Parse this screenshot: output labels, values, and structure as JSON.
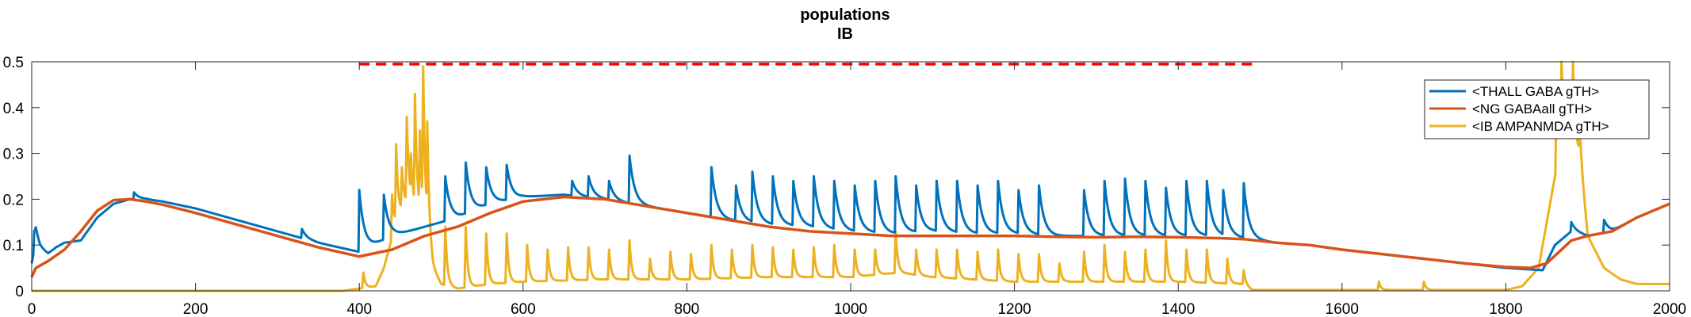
{
  "chart_data": {
    "type": "line",
    "title": "populations",
    "subtitle": "IB",
    "xlabel": "",
    "ylabel": "",
    "xlim": [
      0,
      2000
    ],
    "ylim": [
      0,
      0.5
    ],
    "x_ticks": [
      0,
      200,
      400,
      600,
      800,
      1000,
      1200,
      1400,
      1600,
      1800,
      2000
    ],
    "y_ticks": [
      0,
      0.1,
      0.2,
      0.3,
      0.4,
      0.5
    ],
    "x_tick_labels": [
      "0",
      "200",
      "400",
      "600",
      "800",
      "1000",
      "1200",
      "1400",
      "1600",
      "1800",
      "2000"
    ],
    "y_tick_labels": [
      "0",
      "0.1",
      "0.2",
      "0.3",
      "0.4",
      "0.5"
    ],
    "grid": false,
    "legend_position": "top-right",
    "series": [
      {
        "name": "<THALL GABA gTH>",
        "color": "#0072BD",
        "baseline": {
          "x": [
            0,
            5,
            10,
            20,
            30,
            40,
            60,
            80,
            100,
            120,
            140,
            160,
            200,
            250,
            300,
            350,
            400,
            440,
            480,
            520,
            560,
            600,
            650,
            700,
            750,
            800,
            850,
            900,
            950,
            1000,
            1050,
            1100,
            1150,
            1200,
            1250,
            1300,
            1350,
            1400,
            1450,
            1480,
            1520,
            1560,
            1600,
            1650,
            1700,
            1750,
            1800,
            1845,
            1860,
            1880,
            1900,
            1930,
            1960,
            2000
          ],
          "y": [
            0.06,
            0.11,
            0.09,
            0.08,
            0.095,
            0.105,
            0.11,
            0.16,
            0.19,
            0.2,
            0.2,
            0.195,
            0.18,
            0.155,
            0.13,
            0.105,
            0.085,
            0.12,
            0.14,
            0.16,
            0.19,
            0.205,
            0.21,
            0.2,
            0.185,
            0.17,
            0.155,
            0.145,
            0.14,
            0.13,
            0.125,
            0.13,
            0.125,
            0.125,
            0.12,
            0.12,
            0.12,
            0.12,
            0.12,
            0.115,
            0.105,
            0.1,
            0.09,
            0.08,
            0.07,
            0.06,
            0.05,
            0.045,
            0.1,
            0.13,
            0.12,
            0.13,
            0.16,
            0.19
          ]
        },
        "spikes": [
          {
            "x": 3,
            "y": 0.13
          },
          {
            "x": 125,
            "y": 0.215
          },
          {
            "x": 250,
            "y": 0.15
          },
          {
            "x": 290,
            "y": 0.13
          },
          {
            "x": 330,
            "y": 0.135
          },
          {
            "x": 400,
            "y": 0.22
          },
          {
            "x": 430,
            "y": 0.21
          },
          {
            "x": 505,
            "y": 0.25
          },
          {
            "x": 530,
            "y": 0.28
          },
          {
            "x": 555,
            "y": 0.27
          },
          {
            "x": 580,
            "y": 0.275
          },
          {
            "x": 660,
            "y": 0.24
          },
          {
            "x": 680,
            "y": 0.25
          },
          {
            "x": 705,
            "y": 0.24
          },
          {
            "x": 730,
            "y": 0.295
          },
          {
            "x": 830,
            "y": 0.27
          },
          {
            "x": 860,
            "y": 0.23
          },
          {
            "x": 880,
            "y": 0.26
          },
          {
            "x": 905,
            "y": 0.25
          },
          {
            "x": 930,
            "y": 0.24
          },
          {
            "x": 955,
            "y": 0.25
          },
          {
            "x": 980,
            "y": 0.24
          },
          {
            "x": 1005,
            "y": 0.23
          },
          {
            "x": 1030,
            "y": 0.24
          },
          {
            "x": 1055,
            "y": 0.25
          },
          {
            "x": 1080,
            "y": 0.23
          },
          {
            "x": 1105,
            "y": 0.24
          },
          {
            "x": 1130,
            "y": 0.24
          },
          {
            "x": 1155,
            "y": 0.23
          },
          {
            "x": 1180,
            "y": 0.24
          },
          {
            "x": 1205,
            "y": 0.22
          },
          {
            "x": 1230,
            "y": 0.23
          },
          {
            "x": 1285,
            "y": 0.22
          },
          {
            "x": 1310,
            "y": 0.24
          },
          {
            "x": 1335,
            "y": 0.245
          },
          {
            "x": 1360,
            "y": 0.24
          },
          {
            "x": 1385,
            "y": 0.225
          },
          {
            "x": 1410,
            "y": 0.24
          },
          {
            "x": 1435,
            "y": 0.24
          },
          {
            "x": 1455,
            "y": 0.22
          },
          {
            "x": 1480,
            "y": 0.235
          },
          {
            "x": 1880,
            "y": 0.15
          },
          {
            "x": 1920,
            "y": 0.155
          }
        ]
      },
      {
        "name": "<NG GABAall gTH>",
        "color": "#D95319",
        "x": [
          0,
          5,
          20,
          40,
          60,
          80,
          100,
          120,
          140,
          160,
          200,
          250,
          300,
          350,
          400,
          440,
          480,
          520,
          560,
          600,
          650,
          700,
          750,
          800,
          850,
          900,
          950,
          1000,
          1050,
          1100,
          1150,
          1200,
          1250,
          1300,
          1350,
          1400,
          1450,
          1480,
          1520,
          1560,
          1600,
          1650,
          1700,
          1750,
          1800,
          1830,
          1850,
          1880,
          1900,
          1930,
          1960,
          2000
        ],
        "y": [
          0.03,
          0.05,
          0.065,
          0.09,
          0.13,
          0.175,
          0.198,
          0.2,
          0.195,
          0.188,
          0.17,
          0.145,
          0.12,
          0.095,
          0.075,
          0.09,
          0.12,
          0.14,
          0.17,
          0.195,
          0.205,
          0.2,
          0.185,
          0.17,
          0.155,
          0.14,
          0.13,
          0.125,
          0.12,
          0.12,
          0.12,
          0.12,
          0.118,
          0.117,
          0.118,
          0.117,
          0.115,
          0.113,
          0.105,
          0.1,
          0.09,
          0.08,
          0.07,
          0.06,
          0.052,
          0.05,
          0.06,
          0.11,
          0.12,
          0.13,
          0.16,
          0.19
        ]
      },
      {
        "name": "<IB AMPANMDA gTH>",
        "color": "#EDB120",
        "baseline": {
          "x": [
            0,
            380,
            400,
            420,
            430,
            445,
            460,
            480,
            490,
            500,
            520,
            560,
            600,
            700,
            800,
            900,
            1000,
            1060,
            1100,
            1200,
            1300,
            1400,
            1480,
            1490,
            1600,
            1700,
            1800,
            1820,
            1840,
            1850,
            1860,
            1870,
            1890,
            1900,
            1920,
            1940,
            1960,
            2000
          ],
          "y": [
            0,
            0,
            0.005,
            0.01,
            0.05,
            0.15,
            0.2,
            0.15,
            0.05,
            0.015,
            0.005,
            0.015,
            0.02,
            0.025,
            0.025,
            0.03,
            0.03,
            0.04,
            0.03,
            0.02,
            0.02,
            0.02,
            0.015,
            0.002,
            0.002,
            0.002,
            0.002,
            0.01,
            0.05,
            0.15,
            0.25,
            0.35,
            0.3,
            0.12,
            0.05,
            0.025,
            0.015,
            0.015
          ]
        },
        "spikes": [
          {
            "x": 405,
            "y": 0.04
          },
          {
            "x": 440,
            "y": 0.21
          },
          {
            "x": 445,
            "y": 0.32
          },
          {
            "x": 452,
            "y": 0.27
          },
          {
            "x": 458,
            "y": 0.38
          },
          {
            "x": 463,
            "y": 0.3
          },
          {
            "x": 468,
            "y": 0.43
          },
          {
            "x": 474,
            "y": 0.35
          },
          {
            "x": 478,
            "y": 0.49
          },
          {
            "x": 483,
            "y": 0.37
          },
          {
            "x": 505,
            "y": 0.14
          },
          {
            "x": 530,
            "y": 0.14
          },
          {
            "x": 555,
            "y": 0.125
          },
          {
            "x": 580,
            "y": 0.125
          },
          {
            "x": 605,
            "y": 0.1
          },
          {
            "x": 630,
            "y": 0.09
          },
          {
            "x": 655,
            "y": 0.095
          },
          {
            "x": 680,
            "y": 0.095
          },
          {
            "x": 705,
            "y": 0.09
          },
          {
            "x": 730,
            "y": 0.11
          },
          {
            "x": 755,
            "y": 0.07
          },
          {
            "x": 780,
            "y": 0.085
          },
          {
            "x": 805,
            "y": 0.08
          },
          {
            "x": 830,
            "y": 0.1
          },
          {
            "x": 855,
            "y": 0.09
          },
          {
            "x": 880,
            "y": 0.1
          },
          {
            "x": 905,
            "y": 0.095
          },
          {
            "x": 930,
            "y": 0.09
          },
          {
            "x": 955,
            "y": 0.095
          },
          {
            "x": 980,
            "y": 0.1
          },
          {
            "x": 1005,
            "y": 0.09
          },
          {
            "x": 1030,
            "y": 0.09
          },
          {
            "x": 1055,
            "y": 0.13
          },
          {
            "x": 1080,
            "y": 0.09
          },
          {
            "x": 1105,
            "y": 0.09
          },
          {
            "x": 1130,
            "y": 0.09
          },
          {
            "x": 1155,
            "y": 0.085
          },
          {
            "x": 1180,
            "y": 0.09
          },
          {
            "x": 1205,
            "y": 0.08
          },
          {
            "x": 1230,
            "y": 0.08
          },
          {
            "x": 1255,
            "y": 0.06
          },
          {
            "x": 1285,
            "y": 0.085
          },
          {
            "x": 1310,
            "y": 0.1
          },
          {
            "x": 1335,
            "y": 0.085
          },
          {
            "x": 1360,
            "y": 0.09
          },
          {
            "x": 1385,
            "y": 0.11
          },
          {
            "x": 1410,
            "y": 0.09
          },
          {
            "x": 1435,
            "y": 0.09
          },
          {
            "x": 1460,
            "y": 0.07
          },
          {
            "x": 1480,
            "y": 0.045
          },
          {
            "x": 1645,
            "y": 0.02
          },
          {
            "x": 1700,
            "y": 0.02
          },
          {
            "x": 1862,
            "y": 0.44
          },
          {
            "x": 1868,
            "y": 0.5
          },
          {
            "x": 1875,
            "y": 0.42
          },
          {
            "x": 1882,
            "y": 0.5
          },
          {
            "x": 1890,
            "y": 0.38
          }
        ]
      }
    ],
    "annotations": [
      {
        "type": "dashed-line",
        "color": "#FF0000",
        "x": [
          400,
          1490
        ],
        "y": 0.495
      }
    ]
  }
}
